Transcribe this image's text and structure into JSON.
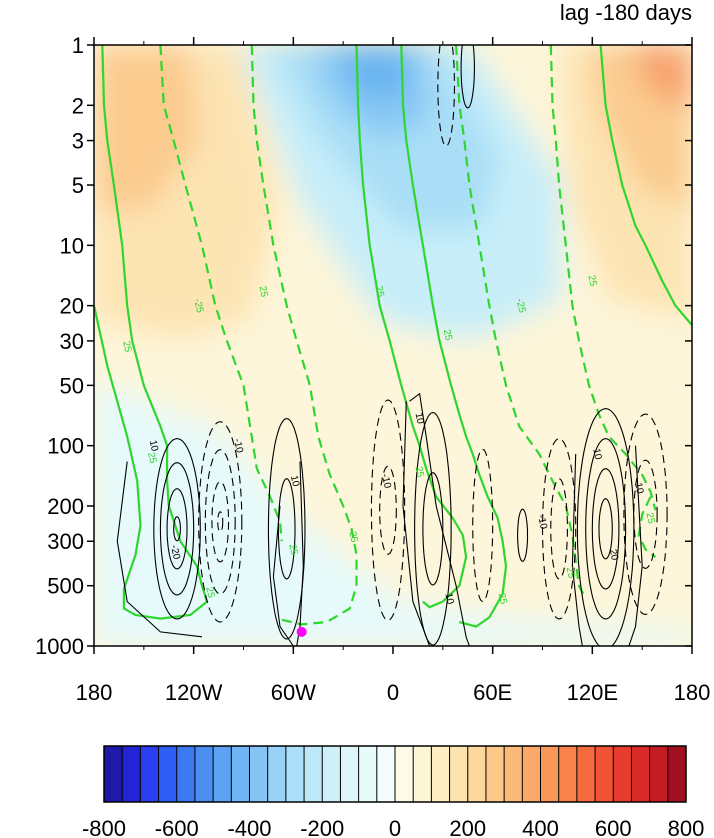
{
  "chart_data": {
    "type": "heatmap",
    "title": "lag -180 days",
    "x_ticks": [
      "180",
      "120W",
      "60W",
      "0",
      "60E",
      "120E",
      "180"
    ],
    "y_ticks": [
      "1",
      "2",
      "3",
      "5",
      "10",
      "20",
      "30",
      "50",
      "100",
      "200",
      "300",
      "500",
      "1000"
    ],
    "y_scale": "log",
    "y_direction": "reversed",
    "colorbar": {
      "labels": [
        "-800",
        "-600",
        "-400",
        "-200",
        "0",
        "200",
        "400",
        "600",
        "800"
      ],
      "levels": [
        -800,
        -750,
        -700,
        -650,
        -600,
        -550,
        -500,
        -450,
        -400,
        -350,
        -300,
        -250,
        -200,
        -150,
        -100,
        -50,
        0,
        50,
        100,
        150,
        200,
        250,
        300,
        350,
        400,
        450,
        500,
        550,
        600,
        650,
        700,
        750,
        800
      ],
      "colors": [
        "#1d1aa8",
        "#2325d4",
        "#2b3ef0",
        "#2f5ef5",
        "#3b78f2",
        "#4a8ef0",
        "#5ea3f2",
        "#72b5f4",
        "#86c4f5",
        "#99d2f6",
        "#acdff7",
        "#bde8f8",
        "#cdf0f9",
        "#dcf6fa",
        "#e8fbfb",
        "#f3fdfc",
        "#fdfbe8",
        "#fdf5d4",
        "#fdedc2",
        "#fde3af",
        "#fdd79c",
        "#fdc989",
        "#fcba78",
        "#fba968",
        "#f99759",
        "#f7824b",
        "#f56b3f",
        "#f15335",
        "#e83c2e",
        "#d92a28",
        "#c41c23",
        "#a1101e"
      ]
    },
    "contour_labels": [
      "10",
      "-10",
      "-20",
      "20",
      "25",
      "-25"
    ],
    "marker": {
      "lon": -55,
      "pressure": 850,
      "color": "#ff00ff"
    }
  }
}
